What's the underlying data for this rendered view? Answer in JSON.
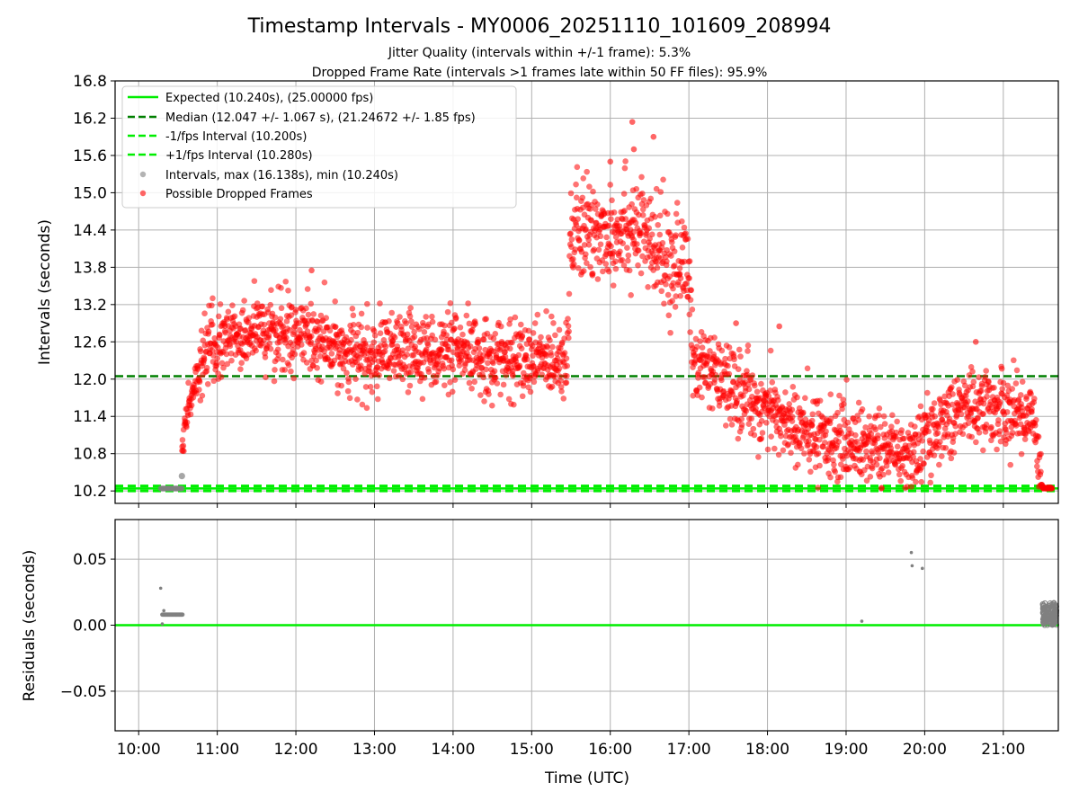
{
  "colors": {
    "expected": "#00ee00",
    "median": "#007f00",
    "bounds": "#00ee00",
    "intervals": "#808080",
    "dropped": "#ff0000",
    "grid": "#b0b0b0",
    "residual_zero": "#00ee00",
    "residual_points": "#808080"
  },
  "chart_data": [
    {
      "type": "scatter",
      "title": "Timestamp Intervals - MY0006_20251110_101609_208994",
      "subtitle1": "Jitter Quality (intervals within +/-1 frame): 5.3%",
      "subtitle2": "Dropped Frame Rate (intervals >1 frames late within 50 FF files): 95.9%",
      "xlabel": "",
      "ylabel": "Intervals (seconds)",
      "xlim_hours": [
        9.7,
        21.7
      ],
      "ylim": [
        10.0,
        16.8
      ],
      "yticks": [
        10.2,
        10.8,
        11.4,
        12.0,
        12.6,
        13.2,
        13.8,
        14.4,
        15.0,
        15.6,
        16.2,
        16.8
      ],
      "ytick_labels": [
        "10.2",
        "10.8",
        "11.4",
        "12.0",
        "12.6",
        "13.2",
        "13.8",
        "14.4",
        "15.0",
        "15.6",
        "16.2",
        "16.8"
      ],
      "xticks_hours": [
        10,
        11,
        12,
        13,
        14,
        15,
        16,
        17,
        18,
        19,
        20,
        21
      ],
      "grid": true,
      "legend_position": "top-left",
      "legend": [
        "Expected (10.240s), (25.00000 fps)",
        "Median (12.047 +/- 1.067 s), (21.24672 +/- 1.85 fps)",
        "-1/fps Interval (10.200s)",
        "+1/fps Interval (10.280s)",
        "Intervals, max (16.138s), min (10.240s)",
        "Possible Dropped Frames"
      ],
      "lines": {
        "expected": 10.24,
        "median": 12.047,
        "minus_one": 10.2,
        "plus_one": 10.28
      },
      "interval_series_trend": [
        {
          "t": 10.3,
          "y": 10.24
        },
        {
          "t": 10.55,
          "y": 10.24
        },
        {
          "t": 10.55,
          "y": 10.44
        }
      ],
      "dropped_series_trend": [
        {
          "t": 10.55,
          "y": 11.0
        },
        {
          "t": 10.7,
          "y": 11.9
        },
        {
          "t": 10.9,
          "y": 12.5
        },
        {
          "t": 11.5,
          "y": 12.8
        },
        {
          "t": 12.0,
          "y": 12.7
        },
        {
          "t": 13.0,
          "y": 12.3
        },
        {
          "t": 13.5,
          "y": 12.5
        },
        {
          "t": 14.0,
          "y": 12.4
        },
        {
          "t": 15.0,
          "y": 12.3
        },
        {
          "t": 15.45,
          "y": 12.4
        },
        {
          "t": 15.5,
          "y": 14.3
        },
        {
          "t": 16.0,
          "y": 14.4
        },
        {
          "t": 16.3,
          "y": 14.5
        },
        {
          "t": 16.6,
          "y": 14.0
        },
        {
          "t": 17.0,
          "y": 13.8
        },
        {
          "t": 17.05,
          "y": 12.3
        },
        {
          "t": 17.5,
          "y": 11.9
        },
        {
          "t": 18.0,
          "y": 11.5
        },
        {
          "t": 18.5,
          "y": 11.1
        },
        {
          "t": 19.0,
          "y": 11.0
        },
        {
          "t": 19.5,
          "y": 10.9
        },
        {
          "t": 19.9,
          "y": 10.85
        },
        {
          "t": 20.2,
          "y": 11.3
        },
        {
          "t": 20.6,
          "y": 11.6
        },
        {
          "t": 21.0,
          "y": 11.5
        },
        {
          "t": 21.4,
          "y": 11.4
        },
        {
          "t": 21.5,
          "y": 10.25
        },
        {
          "t": 21.6,
          "y": 10.24
        }
      ],
      "max_interval": 16.138,
      "min_interval": 10.24
    },
    {
      "type": "scatter",
      "title": "",
      "xlabel": "Time (UTC)",
      "ylabel": "Residuals (seconds)",
      "xlim_hours": [
        9.7,
        21.7
      ],
      "ylim": [
        -0.08,
        0.08
      ],
      "yticks": [
        -0.05,
        0.0,
        0.05
      ],
      "ytick_labels": [
        "−0.05",
        "0.00",
        "0.05"
      ],
      "xticks_hours": [
        10,
        11,
        12,
        13,
        14,
        15,
        16,
        17,
        18,
        19,
        20,
        21
      ],
      "xtick_labels": [
        "10:00",
        "11:00",
        "12:00",
        "13:00",
        "14:00",
        "15:00",
        "16:00",
        "17:00",
        "18:00",
        "19:00",
        "20:00",
        "21:00"
      ],
      "grid": true,
      "zero_line": 0.0,
      "points": [
        {
          "t": 10.28,
          "y": 0.028
        },
        {
          "t": 10.3,
          "y": 0.001
        },
        {
          "t": 10.3,
          "y": 0.008
        },
        {
          "t": 10.32,
          "y": 0.011
        },
        {
          "t": 10.35,
          "y": 0.008
        },
        {
          "t": 10.4,
          "y": 0.008
        },
        {
          "t": 10.45,
          "y": 0.008
        },
        {
          "t": 10.5,
          "y": 0.008
        },
        {
          "t": 10.55,
          "y": 0.008
        },
        {
          "t": 19.2,
          "y": 0.003
        },
        {
          "t": 19.83,
          "y": 0.055
        },
        {
          "t": 19.84,
          "y": 0.045
        },
        {
          "t": 19.97,
          "y": 0.043
        }
      ],
      "end_cluster": {
        "t_start": 21.5,
        "t_end": 21.7,
        "y_min": 0.0,
        "y_max": 0.017
      }
    }
  ]
}
